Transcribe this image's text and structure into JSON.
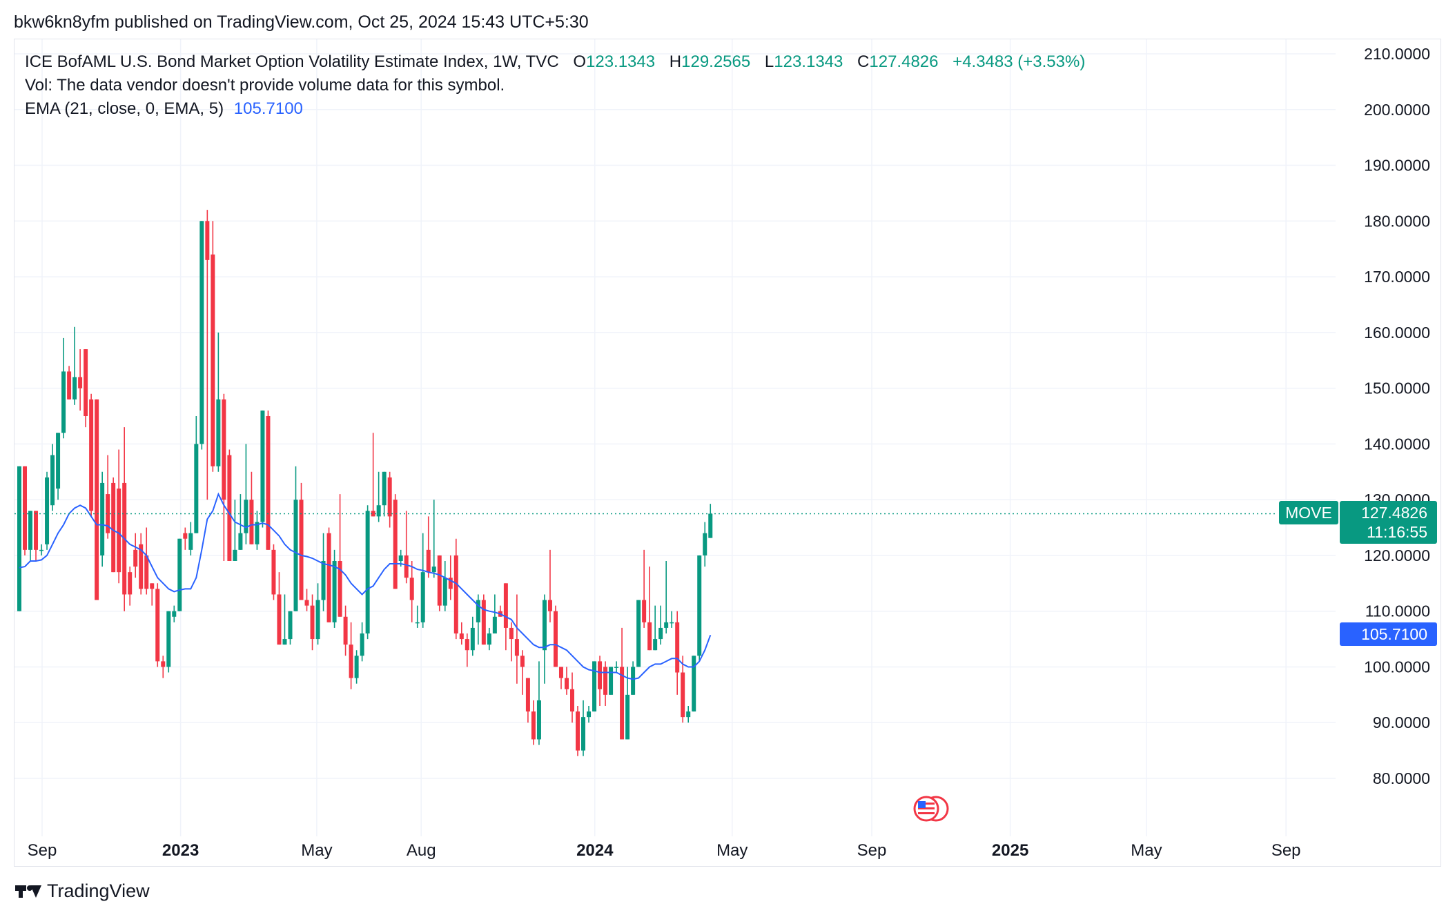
{
  "header": {
    "published_line": "bkw6kn8yfm published on TradingView.com, Oct 25, 2024 15:43 UTC+5:30"
  },
  "legend": {
    "symbol_line": "ICE BofAML U.S. Bond Market Option Volatility Estimate Index, 1W, TVC",
    "open_label": "O",
    "open_value": "123.1343",
    "high_label": "H",
    "high_value": "129.2565",
    "low_label": "L",
    "low_value": "123.1343",
    "close_label": "C",
    "close_value": "127.4826",
    "change": "+4.3483 (+3.53%)",
    "vol_line": "Vol: The data vendor doesn't provide volume data for this symbol.",
    "ema_label": "EMA (21, close, 0, EMA, 5)",
    "ema_value": "105.7100"
  },
  "price_badges": {
    "symbol_tag": "MOVE",
    "last_price": "127.4826",
    "countdown": "11:16:55",
    "ema_price": "105.7100"
  },
  "footer": {
    "brand": "TradingView"
  },
  "colors": {
    "up": "#089981",
    "down": "#f23645",
    "ema": "#2962ff",
    "grid": "#f0f3fa",
    "text": "#131722",
    "badge_green": "#089981",
    "badge_blue": "#2962ff"
  },
  "chart_data": {
    "type": "candlestick",
    "timeframe": "1W",
    "ylim": [
      72,
      214
    ],
    "y_ticks": [
      "80.0000",
      "90.0000",
      "100.0000",
      "110.0000",
      "120.0000",
      "130.0000",
      "140.0000",
      "150.0000",
      "160.0000",
      "170.0000",
      "180.0000",
      "190.0000",
      "200.0000",
      "210.0000"
    ],
    "x_ticks": [
      {
        "label": "Sep",
        "date": "2022-09-01",
        "bold": false
      },
      {
        "label": "2023",
        "date": "2023-01-01",
        "bold": true
      },
      {
        "label": "May",
        "date": "2023-05-01",
        "bold": false
      },
      {
        "label": "Aug",
        "date": "2023-08-01",
        "bold": false
      },
      {
        "label": "2024",
        "date": "2024-01-01",
        "bold": true
      },
      {
        "label": "May",
        "date": "2024-05-01",
        "bold": false
      },
      {
        "label": "Sep",
        "date": "2024-09-01",
        "bold": false
      },
      {
        "label": "2025",
        "date": "2025-01-01",
        "bold": true
      },
      {
        "label": "May",
        "date": "2025-05-01",
        "bold": false
      },
      {
        "label": "Sep",
        "date": "2025-09-01",
        "bold": false
      }
    ],
    "candles": [
      [
        110.0,
        136.0,
        110.0,
        136.0
      ],
      [
        136.0,
        136.0,
        120.0,
        121.0
      ],
      [
        121.0,
        128.0,
        119.0,
        128.0
      ],
      [
        128.0,
        128.0,
        119.0,
        121.0
      ],
      [
        121.0,
        122.0,
        120.0,
        121.0
      ],
      [
        122.0,
        135.0,
        121.0,
        134.0
      ],
      [
        129.0,
        140.0,
        128.0,
        138.0
      ],
      [
        132.0,
        142.0,
        130.0,
        142.0
      ],
      [
        142.0,
        159.0,
        141.0,
        153.0
      ],
      [
        153.0,
        154.0,
        148.0,
        148.0
      ],
      [
        148.0,
        161.0,
        147.0,
        152.0
      ],
      [
        152.0,
        157.0,
        146.0,
        150.0
      ],
      [
        157.0,
        157.0,
        143.0,
        145.0
      ],
      [
        148.0,
        149.0,
        127.0,
        128.0
      ],
      [
        148.0,
        148.0,
        112.0,
        112.0
      ],
      [
        120.0,
        135.0,
        118.0,
        133.0
      ],
      [
        131.0,
        138.0,
        123.0,
        124.0
      ],
      [
        133.0,
        134.0,
        117.0,
        117.0
      ],
      [
        132.0,
        139.0,
        115.0,
        117.0
      ],
      [
        133.0,
        143.0,
        110.0,
        113.0
      ],
      [
        117.0,
        118.0,
        111.0,
        113.0
      ],
      [
        121.0,
        124.0,
        116.0,
        118.0
      ],
      [
        122.0,
        124.0,
        113.0,
        114.0
      ],
      [
        120.0,
        125.0,
        113.0,
        114.0
      ],
      [
        115.0,
        115.0,
        111.0,
        114.0
      ],
      [
        114.0,
        115.0,
        100.0,
        101.0
      ],
      [
        101.0,
        102.0,
        98.0,
        100.0
      ],
      [
        100.0,
        110.0,
        99.0,
        110.0
      ],
      [
        109.0,
        111.0,
        108.0,
        110.0
      ],
      [
        110.0,
        123.0,
        110.0,
        123.0
      ],
      [
        124.0,
        125.0,
        121.0,
        123.0
      ],
      [
        121.0,
        126.0,
        120.0,
        124.0
      ],
      [
        124.0,
        145.0,
        124.0,
        140.0
      ],
      [
        140.0,
        180.0,
        139.0,
        180.0
      ],
      [
        180.0,
        182.0,
        130.0,
        173.0
      ],
      [
        174.0,
        180.0,
        135.0,
        136.0
      ],
      [
        136.0,
        160.0,
        135.0,
        148.0
      ],
      [
        148.0,
        149.0,
        119.0,
        130.0
      ],
      [
        138.0,
        139.0,
        119.0,
        119.0
      ],
      [
        119.0,
        130.0,
        119.0,
        121.0
      ],
      [
        121.0,
        131.0,
        121.0,
        124.0
      ],
      [
        124.0,
        140.0,
        122.0,
        130.0
      ],
      [
        130.0,
        135.0,
        122.0,
        122.0
      ],
      [
        122.0,
        128.0,
        121.0,
        126.0
      ],
      [
        126.0,
        146.0,
        125.0,
        146.0
      ],
      [
        145.0,
        146.0,
        121.0,
        121.0
      ],
      [
        121.0,
        122.0,
        112.0,
        113.0
      ],
      [
        113.0,
        117.0,
        104.0,
        104.0
      ],
      [
        104.0,
        113.0,
        104.0,
        105.0
      ],
      [
        105.0,
        110.0,
        104.0,
        110.0
      ],
      [
        110.0,
        136.0,
        110.0,
        130.0
      ],
      [
        130.0,
        133.0,
        112.0,
        112.0
      ],
      [
        112.0,
        114.0,
        110.0,
        111.0
      ],
      [
        111.0,
        113.0,
        103.0,
        105.0
      ],
      [
        105.0,
        115.0,
        104.0,
        112.0
      ],
      [
        112.0,
        124.0,
        110.0,
        119.0
      ],
      [
        124.0,
        125.0,
        108.0,
        108.0
      ],
      [
        108.0,
        121.0,
        107.0,
        119.0
      ],
      [
        119.0,
        131.0,
        109.0,
        109.0
      ],
      [
        109.0,
        111.0,
        102.0,
        104.0
      ],
      [
        104.0,
        108.0,
        96.0,
        98.0
      ],
      [
        98.0,
        103.0,
        97.0,
        102.0
      ],
      [
        102.0,
        108.0,
        101.0,
        106.0
      ],
      [
        106.0,
        129.0,
        105.0,
        128.0
      ],
      [
        128.0,
        142.0,
        127.0,
        127.0
      ],
      [
        127.0,
        135.0,
        126.0,
        129.0
      ],
      [
        129.0,
        135.0,
        127.0,
        135.0
      ],
      [
        134.0,
        135.0,
        125.0,
        127.0
      ],
      [
        130.0,
        131.0,
        114.0,
        114.0
      ],
      [
        119.0,
        121.0,
        118.0,
        120.0
      ],
      [
        120.0,
        128.0,
        115.0,
        116.0
      ],
      [
        116.0,
        119.0,
        108.0,
        112.0
      ],
      [
        108.0,
        111.0,
        107.0,
        108.0
      ],
      [
        108.0,
        124.0,
        107.0,
        117.0
      ],
      [
        121.0,
        127.0,
        116.0,
        117.0
      ],
      [
        117.0,
        130.0,
        116.0,
        118.0
      ],
      [
        120.0,
        120.0,
        110.0,
        111.0
      ],
      [
        111.0,
        119.0,
        110.0,
        116.0
      ],
      [
        116.0,
        120.0,
        112.0,
        114.0
      ],
      [
        120.0,
        123.0,
        105.0,
        106.0
      ],
      [
        106.0,
        108.0,
        104.0,
        105.0
      ],
      [
        105.0,
        106.0,
        100.0,
        103.0
      ],
      [
        103.0,
        109.0,
        102.0,
        107.0
      ],
      [
        108.0,
        113.0,
        104.0,
        112.0
      ],
      [
        112.0,
        113.0,
        104.0,
        104.0
      ],
      [
        104.0,
        107.0,
        103.0,
        106.0
      ],
      [
        106.0,
        113.0,
        106.0,
        109.0
      ],
      [
        110.0,
        111.0,
        109.0,
        109.0
      ],
      [
        115.0,
        115.0,
        103.0,
        107.0
      ],
      [
        107.0,
        108.0,
        101.0,
        105.0
      ],
      [
        105.0,
        113.0,
        97.0,
        102.0
      ],
      [
        102.0,
        103.0,
        95.0,
        100.0
      ],
      [
        98.0,
        98.0,
        90.0,
        92.0
      ],
      [
        92.0,
        94.0,
        86.0,
        87.0
      ],
      [
        87.0,
        101.0,
        86.0,
        94.0
      ],
      [
        103.0,
        113.0,
        97.0,
        112.0
      ],
      [
        112.0,
        121.0,
        108.0,
        110.0
      ],
      [
        110.0,
        111.0,
        100.0,
        100.0
      ],
      [
        100.0,
        100.0,
        96.0,
        98.0
      ],
      [
        98.0,
        100.0,
        95.0,
        96.0
      ],
      [
        96.0,
        99.0,
        90.0,
        92.0
      ],
      [
        92.0,
        93.0,
        84.0,
        85.0
      ],
      [
        85.0,
        94.0,
        84.0,
        91.0
      ],
      [
        91.0,
        93.0,
        90.0,
        92.0
      ],
      [
        92.0,
        101.0,
        92.0,
        101.0
      ],
      [
        101.0,
        102.0,
        93.0,
        96.0
      ],
      [
        100.0,
        101.0,
        93.0,
        95.0
      ],
      [
        95.0,
        100.0,
        95.0,
        100.0
      ],
      [
        100.0,
        101.0,
        99.0,
        100.0
      ],
      [
        100.0,
        107.0,
        87.0,
        87.0
      ],
      [
        87.0,
        100.0,
        87.0,
        95.0
      ],
      [
        95.0,
        101.0,
        95.0,
        100.0
      ],
      [
        100.0,
        112.0,
        100.0,
        112.0
      ],
      [
        112.0,
        121.0,
        107.0,
        108.0
      ],
      [
        108.0,
        118.0,
        103.0,
        103.0
      ],
      [
        103.0,
        111.0,
        103.0,
        105.0
      ],
      [
        105.0,
        111.0,
        104.0,
        107.0
      ],
      [
        107.0,
        119.0,
        106.0,
        108.0
      ],
      [
        108.0,
        110.0,
        107.0,
        108.0
      ],
      [
        108.0,
        110.0,
        95.0,
        99.0
      ],
      [
        99.0,
        102.0,
        90.0,
        91.0
      ],
      [
        91.0,
        93.0,
        90.0,
        92.0
      ],
      [
        92.0,
        102.0,
        92.0,
        102.0
      ],
      [
        102.0,
        120.0,
        101.0,
        120.0
      ],
      [
        120.0,
        126.0,
        118.0,
        124.0
      ],
      [
        123.1343,
        129.2565,
        123.1343,
        127.4826
      ]
    ],
    "ema": [
      117.8,
      118.0,
      119.0,
      119.0,
      119.2,
      120.0,
      122.0,
      124.0,
      125.5,
      127.5,
      128.5,
      129.0,
      128.5,
      127.0,
      125.5,
      125.5,
      125.3,
      124.5,
      124.0,
      123.0,
      122.0,
      121.5,
      121.0,
      120.0,
      118.0,
      116.0,
      115.0,
      114.0,
      113.5,
      113.8,
      114.0,
      114.0,
      116.0,
      121.0,
      126.5,
      128.0,
      131.0,
      129.0,
      127.5,
      126.0,
      125.5,
      125.0,
      125.5,
      125.5,
      125.8,
      125.5,
      124.5,
      123.5,
      122.0,
      121.0,
      120.5,
      120.0,
      119.8,
      119.5,
      119.0,
      118.5,
      118.3,
      118.0,
      117.5,
      116.5,
      115.0,
      114.0,
      113.0,
      114.0,
      114.5,
      116.0,
      117.5,
      118.5,
      118.5,
      118.5,
      118.3,
      118.0,
      117.5,
      117.3,
      117.0,
      116.8,
      116.5,
      116.0,
      115.5,
      115.0,
      114.0,
      113.0,
      112.0,
      111.0,
      110.3,
      110.0,
      109.8,
      109.5,
      109.0,
      108.5,
      107.0,
      106.0,
      105.0,
      104.0,
      103.5,
      103.5,
      104.0,
      104.0,
      103.5,
      103.0,
      102.0,
      101.0,
      100.0,
      99.5,
      99.3,
      99.0,
      99.0,
      99.0,
      99.0,
      98.5,
      98.0,
      97.8,
      98.0,
      99.0,
      100.0,
      100.5,
      100.5,
      101.0,
      101.5,
      101.5,
      100.5,
      100.0,
      100.0,
      101.0,
      103.0,
      105.71
    ]
  }
}
